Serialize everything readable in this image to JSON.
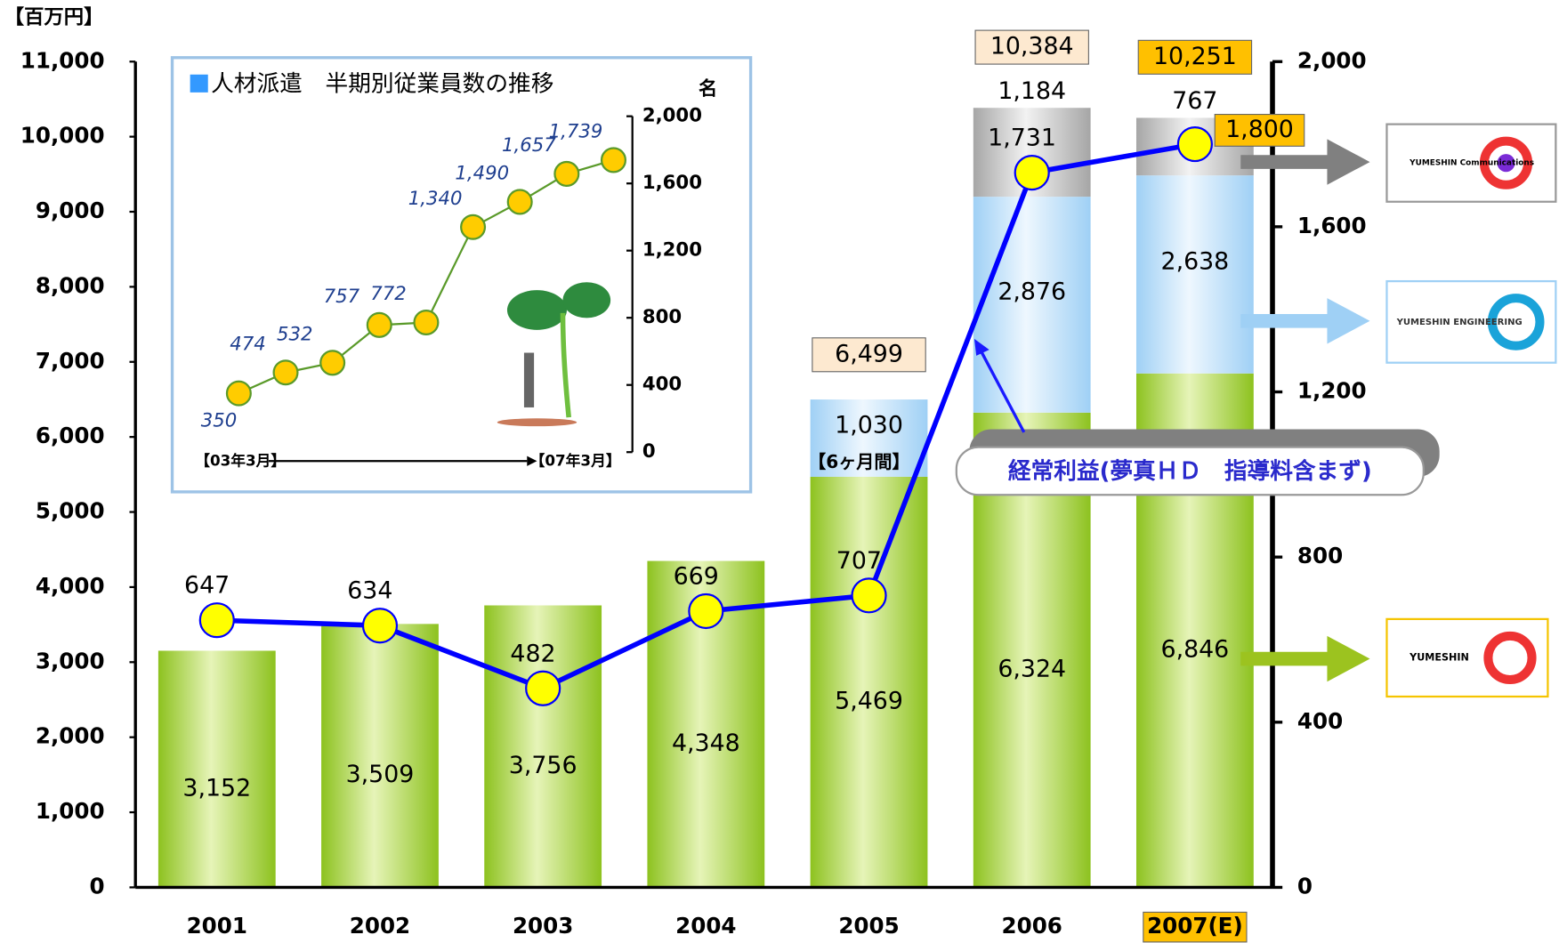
{
  "chart_data": [
    {
      "type": "bar",
      "stacked": true,
      "y_label": "【百万円】",
      "categories": [
        "2001",
        "2002",
        "2003",
        "2004",
        "2005",
        "2006",
        "2007(E)"
      ],
      "series": [
        {
          "color": "#8dc21f",
          "values": [
            3152,
            3509,
            3756,
            4348,
            5469,
            6324,
            6846
          ],
          "value_labels": [
            "3,152",
            "3,509",
            "3,756",
            "4,348",
            "5,469",
            "6,324",
            "6,846"
          ]
        },
        {
          "color": "#9fd0f5",
          "values": [
            null,
            null,
            null,
            null,
            1030,
            2876,
            2638
          ],
          "value_labels": [
            null,
            null,
            null,
            null,
            "1,030",
            "2,876",
            "2,638"
          ]
        },
        {
          "color": "#a6a6a6",
          "values": [
            null,
            null,
            null,
            null,
            null,
            1184,
            767
          ],
          "value_labels": [
            null,
            null,
            null,
            null,
            null,
            "1,184",
            "767"
          ]
        },
        {
          "type": "line",
          "axis": "y2",
          "color": "#0000ff",
          "values": [
            647,
            634,
            482,
            669,
            707,
            1731,
            1800
          ],
          "value_labels": [
            "647",
            "634",
            "482",
            "669",
            "707",
            "1,731",
            "1,800"
          ]
        }
      ],
      "totals": {
        "values": [
          null,
          null,
          null,
          null,
          6499,
          10384,
          10251
        ],
        "value_labels": [
          null,
          null,
          null,
          null,
          "6,499",
          "10,384",
          "10,251"
        ]
      },
      "ylim": [
        0,
        11000
      ],
      "yticks": [
        0,
        {
          "value": 1000,
          "label": "1,000"
        },
        {
          "value": 2000,
          "label": "2,000"
        },
        {
          "value": 3000,
          "label": "3,000"
        },
        {
          "value": 4000,
          "label": "4,000"
        },
        {
          "value": 5000,
          "label": "5,000"
        },
        {
          "value": 6000,
          "label": "6,000"
        },
        {
          "value": 7000,
          "label": "7,000"
        },
        {
          "value": 8000,
          "label": "8,000"
        },
        {
          "value": 9000,
          "label": "9,000"
        },
        {
          "value": 10000,
          "label": "10,000"
        },
        {
          "value": 11000,
          "label": "11,000"
        }
      ],
      "y2lim": [
        0,
        2000
      ],
      "y2ticks": [
        0,
        400,
        800,
        {
          "value": 1200,
          "label": "1,200"
        },
        {
          "value": 1600,
          "label": "1,600"
        },
        {
          "value": 2000,
          "label": "2,000"
        }
      ],
      "annotations": [
        "【6ヶ月間】",
        "経常利益(夢真ＨＤ　指導料含まず)"
      ],
      "logos": [
        "YUMESHIN Communications",
        "YUMESHIN ENGINEERING",
        "YUMESHIN"
      ]
    },
    {
      "type": "line",
      "title": "人材派遣　半期別従業員数の推移",
      "y_unit": "名",
      "color": "#5a9a2a",
      "values": [
        350,
        474,
        532,
        757,
        772,
        1340,
        1490,
        1657,
        1739
      ],
      "value_labels": [
        "350",
        "474",
        "532",
        "757",
        "772",
        "1,340",
        "1,490",
        "1,657",
        "1,739"
      ],
      "x_labels": [
        "【03年3月】",
        "【07年3月】"
      ],
      "ylim": [
        0,
        2000
      ],
      "yticks": [
        0,
        400,
        800,
        {
          "value": 1200,
          "label": "1,200"
        },
        {
          "value": 1600,
          "label": "1,600"
        },
        {
          "value": 2000,
          "label": "2,000"
        }
      ]
    }
  ]
}
